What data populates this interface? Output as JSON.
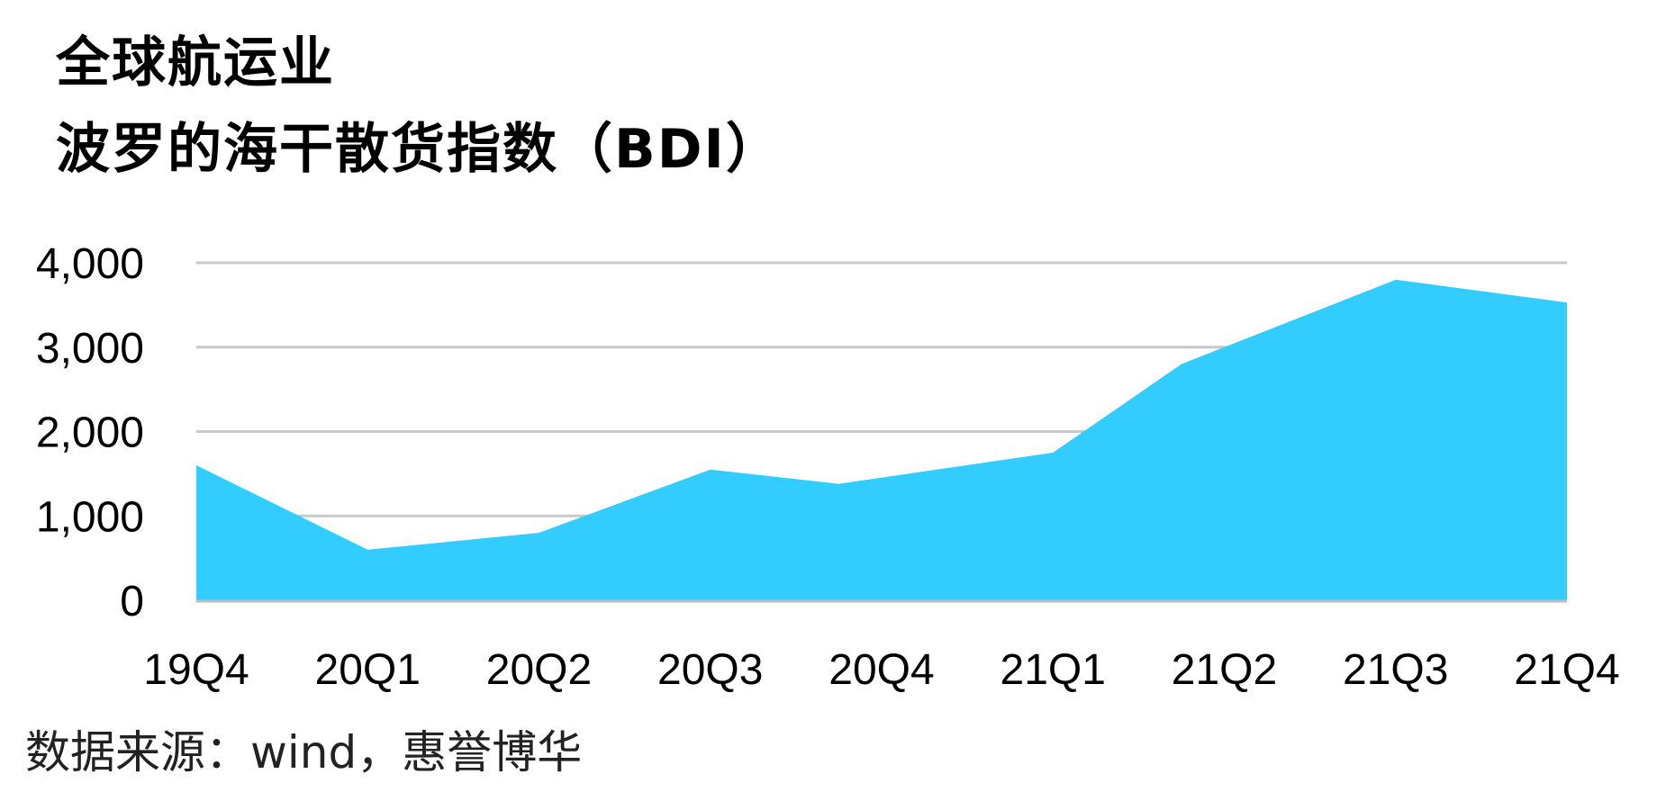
{
  "title": {
    "line1": "全球航运业",
    "line2": "波罗的海干散货指数（BDI）"
  },
  "chart_data": {
    "type": "area",
    "categories": [
      "19Q4",
      "20Q1",
      "20Q2",
      "20Q3",
      "20Q4",
      "21Q1",
      "21Q2",
      "21Q3",
      "21Q4"
    ],
    "x_points": [
      0,
      1,
      2,
      3,
      3.75,
      5,
      5.75,
      7,
      8
    ],
    "values": [
      1600,
      600,
      800,
      1550,
      1380,
      1750,
      2800,
      3800,
      3530
    ],
    "ylim": [
      0,
      4000
    ],
    "yticks": [
      0,
      1000,
      2000,
      3000,
      4000
    ],
    "ytick_labels": [
      "0",
      "1,000",
      "2,000",
      "3,000",
      "4,000"
    ],
    "grid": true,
    "legend": "none",
    "xlabel": "",
    "ylabel": "",
    "colors": {
      "area": "#33ccff",
      "grid": "#c8c8c8",
      "axis": "#bfbfbf"
    }
  },
  "source": "数据来源：wind，惠誉博华"
}
